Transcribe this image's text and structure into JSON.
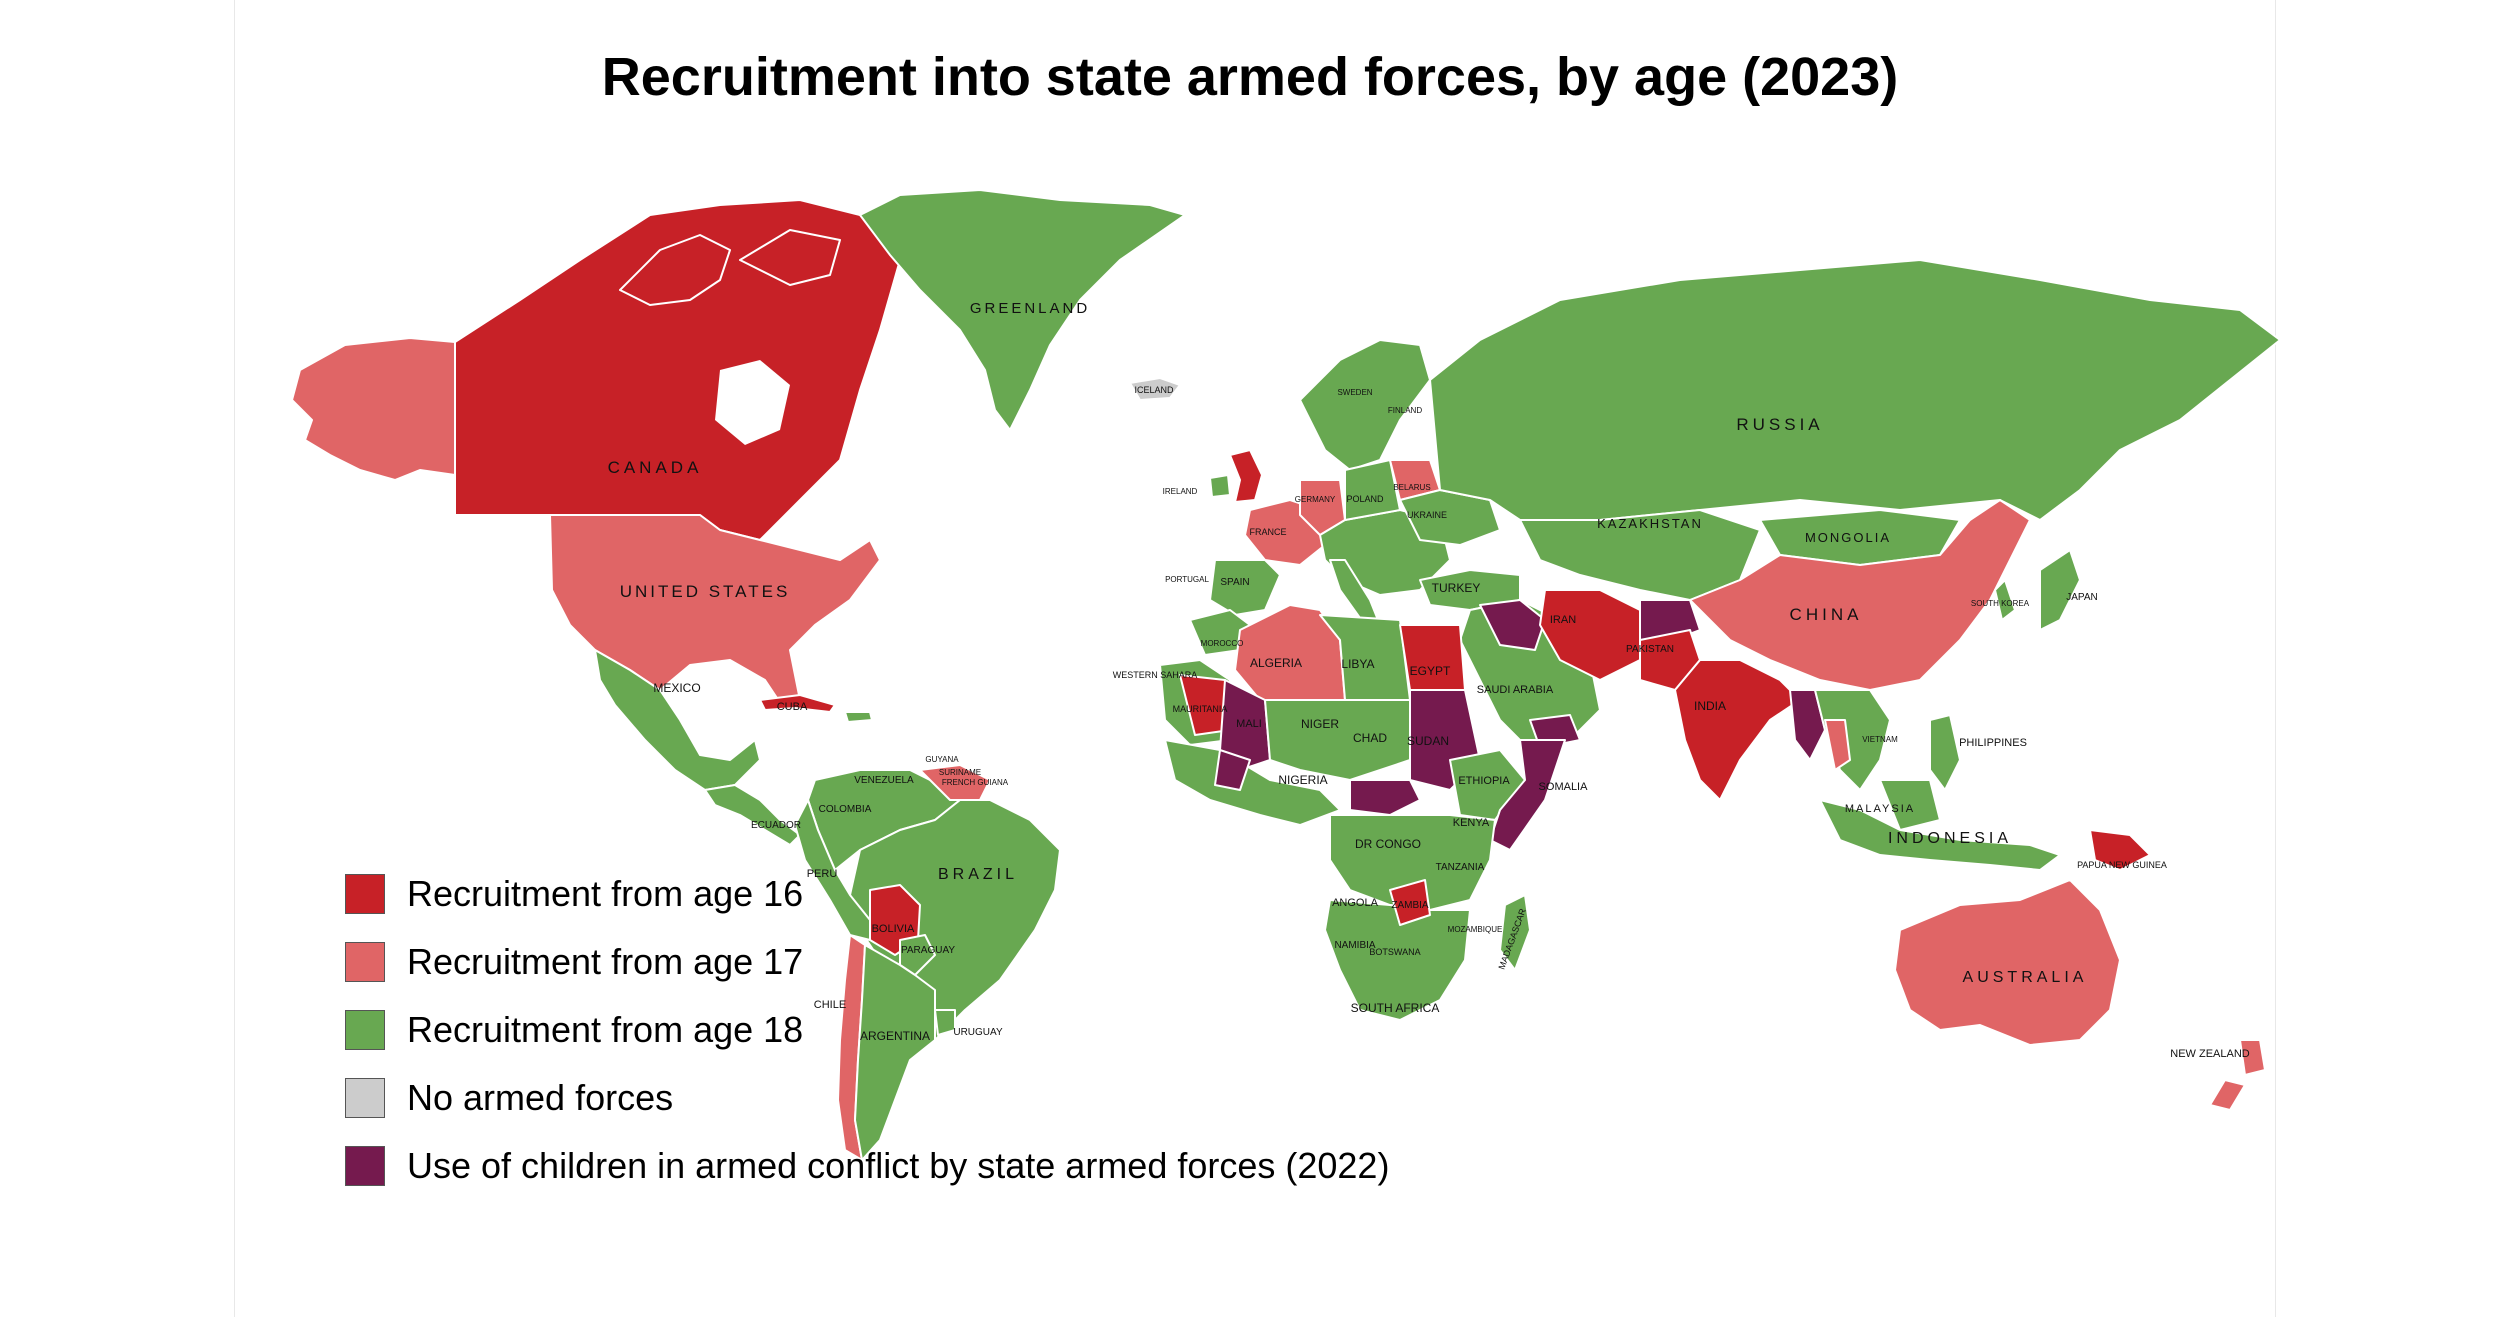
{
  "title": "Recruitment into state armed forces, by age (2023)",
  "colors": {
    "age16": "#c72127",
    "age17": "#e06566",
    "age18": "#68a851",
    "none": "#cccccc",
    "children": "#751a4e",
    "border": "#ffffff"
  },
  "legend": [
    {
      "key": "age16",
      "label": "Recruitment from age 16",
      "color": "#c72127"
    },
    {
      "key": "age17",
      "label": "Recruitment from age 17",
      "color": "#e06566"
    },
    {
      "key": "age18",
      "label": "Recruitment from age 18",
      "color": "#68a851"
    },
    {
      "key": "none",
      "label": "No armed forces",
      "color": "#cccccc"
    },
    {
      "key": "children",
      "label": "Use of children in armed conflict by state armed forces (2022)",
      "color": "#751a4e"
    }
  ],
  "labels": {
    "greenland": "GREENLAND",
    "iceland": "ICELAND",
    "canada": "CANADA",
    "usa": "UNITED STATES",
    "mexico": "MEXICO",
    "cuba": "CUBA",
    "brazil": "BRAZIL",
    "argentina": "ARGENTINA",
    "chile": "CHILE",
    "peru": "PERU",
    "bolivia": "BOLIVIA",
    "colombia": "COLOMBIA",
    "venezuela": "VENEZUELA",
    "ecuador": "ECUADOR",
    "paraguay": "PARAGUAY",
    "uruguay": "URUGUAY",
    "guyana": "GUYANA",
    "suriname": "SURINAME",
    "french_guiana": "FRENCH GUIANA",
    "russia": "RUSSIA",
    "kazakhstan": "KAZAKHSTAN",
    "mongolia": "MONGOLIA",
    "china": "CHINA",
    "india": "INDIA",
    "iran": "IRAN",
    "pakistan": "PAKISTAN",
    "turkey": "TURKEY",
    "saudi_arabia": "SAUDI ARABIA",
    "japan": "JAPAN",
    "south_korea": "SOUTH KOREA",
    "philippines": "PHILIPPINES",
    "indonesia": "INDONESIA",
    "malaysia": "MALAYSIA",
    "vietnam": "VIETNAM",
    "australia": "AUSTRALIA",
    "new_zealand": "NEW ZEALAND",
    "papua": "PAPUA NEW GUINEA",
    "algeria": "ALGERIA",
    "libya": "LIBYA",
    "egypt": "EGYPT",
    "mali": "MALI",
    "niger": "NIGER",
    "chad": "CHAD",
    "sudan": "SUDAN",
    "nigeria": "NIGERIA",
    "ethiopia": "ETHIOPIA",
    "somalia": "SOMALIA",
    "kenya": "KENYA",
    "tanzania": "TANZANIA",
    "dr_congo": "DR CONGO",
    "angola": "ANGOLA",
    "zambia": "ZAMBIA",
    "namibia": "NAMIBIA",
    "botswana": "BOTSWANA",
    "south_africa": "SOUTH AFRICA",
    "mozambique": "MOZAMBIQUE",
    "madagascar": "MADAGASCAR",
    "mauritania": "MAURITANIA",
    "morocco": "MOROCCO",
    "western_sahara": "WESTERN SAHARA",
    "spain": "SPAIN",
    "portugal": "PORTUGAL",
    "france": "FRANCE",
    "germany": "GERMANY",
    "poland": "POLAND",
    "ukraine": "UKRAINE",
    "belarus": "BELARUS",
    "sweden": "SWEDEN",
    "finland": "FINLAND",
    "ireland": "IRELAND"
  }
}
